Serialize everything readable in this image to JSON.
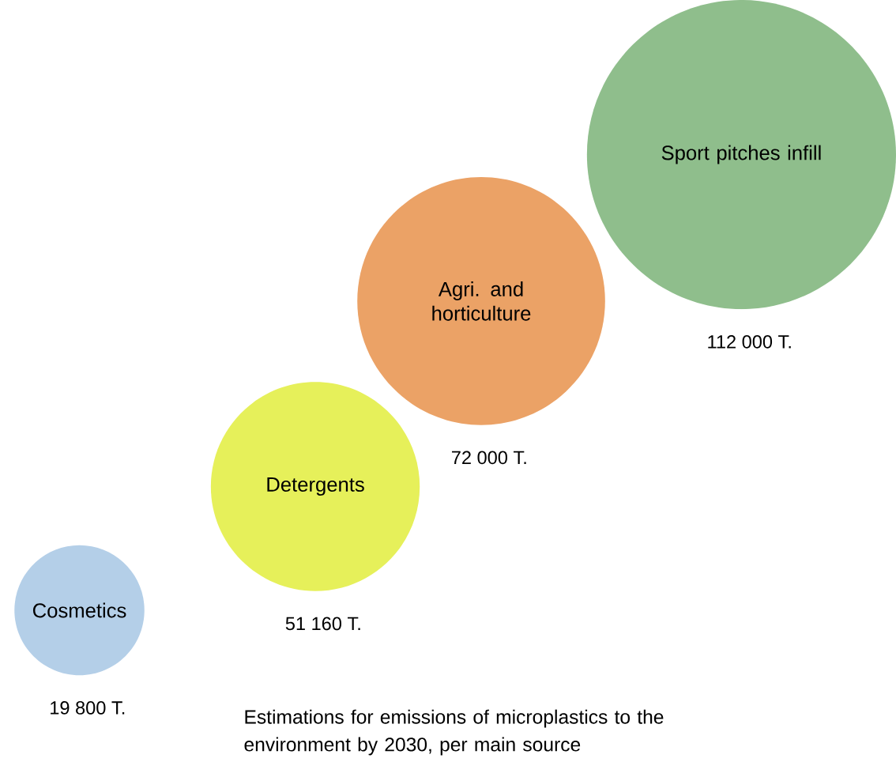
{
  "chart_data": {
    "type": "other",
    "categories": [
      "Cosmetics",
      "Detergents",
      "Agri. and horticulture",
      "Sport pitches infill"
    ],
    "values": [
      19800,
      51160,
      72000,
      112000
    ],
    "value_labels": [
      "19 800 T.",
      "51 160 T.",
      "72 000 T.",
      "112 000 T."
    ],
    "colors": [
      "#b4cfe8",
      "#e6f05a",
      "#eba266",
      "#8fbe8c"
    ],
    "annotations": [
      "Estimations for emissions of microplastics to the environment by 2030, per main source"
    ]
  }
}
